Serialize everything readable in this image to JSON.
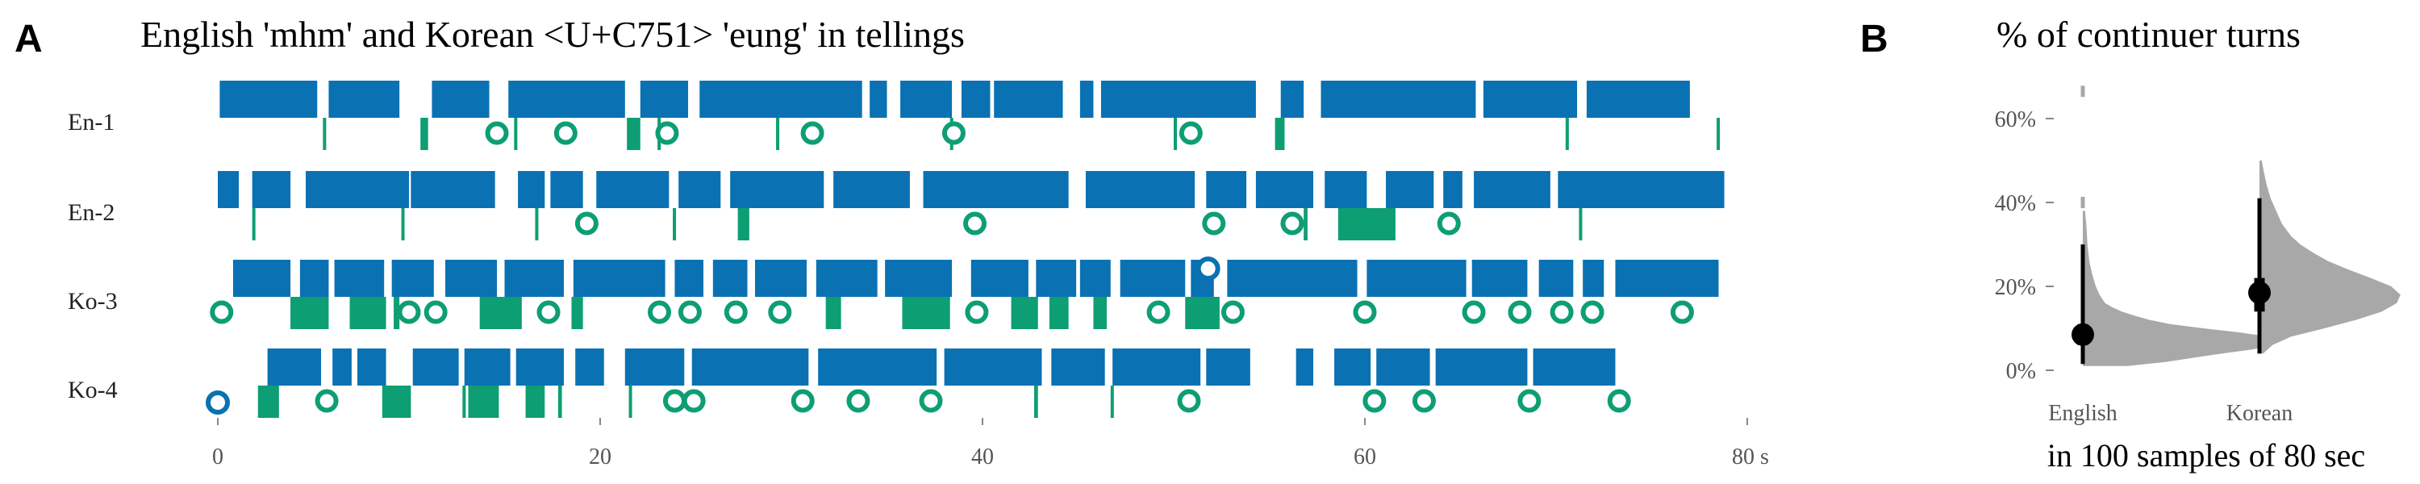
{
  "chart_data": [
    {
      "type": "timeline",
      "panel_label": "A",
      "title": "English 'mhm' and Korean <U+C751> 'eung' in tellings",
      "x_unit_label": "80 s",
      "x_ticks": [
        "0",
        "20",
        "40",
        "60"
      ],
      "x_tick_values": [
        0,
        20,
        40,
        60
      ],
      "xlim": [
        0,
        80
      ],
      "colors": {
        "teller": "#0a71b3",
        "continuer": "#0e9e73"
      },
      "rows": [
        {
          "label": "En-1",
          "teller_turns": [
            [
              0.1,
              5.2
            ],
            [
              5.8,
              9.5
            ],
            [
              11.2,
              14.2
            ],
            [
              15.2,
              21.3
            ],
            [
              22.1,
              24.6
            ],
            [
              25.2,
              33.7
            ],
            [
              34.1,
              35
            ],
            [
              35.7,
              38.4
            ],
            [
              38.9,
              40.4
            ],
            [
              40.6,
              44.2
            ],
            [
              45.1,
              45.8
            ],
            [
              46.2,
              54.3
            ],
            [
              55.6,
              56.8
            ],
            [
              57.7,
              65.8
            ],
            [
              66.2,
              71.1
            ],
            [
              71.6,
              77
            ]
          ],
          "continuer_turns": [
            [
              5.5,
              5.6
            ],
            [
              10.6,
              11
            ],
            [
              15.5,
              15.6
            ],
            [
              21.4,
              22.1
            ],
            [
              23,
              23.1
            ],
            [
              29.2,
              29.3
            ],
            [
              38.3,
              38.4
            ],
            [
              50,
              50.1
            ],
            [
              55.3,
              55.8
            ],
            [
              70.5,
              70.6
            ],
            [
              78.4,
              78.5
            ]
          ],
          "teller_tokens": [],
          "continuer_tokens": [
            14.6,
            18.2,
            23.5,
            31.1,
            38.5,
            50.9
          ]
        },
        {
          "label": "En-2",
          "teller_turns": [
            [
              0,
              1.1
            ],
            [
              1.8,
              3.8
            ],
            [
              4.6,
              10
            ],
            [
              10.1,
              14.5
            ],
            [
              15.7,
              17.1
            ],
            [
              17.4,
              19.1
            ],
            [
              19.8,
              23.6
            ],
            [
              24.1,
              26.3
            ],
            [
              26.8,
              31.7
            ],
            [
              32.2,
              36.2
            ],
            [
              36.9,
              44.5
            ],
            [
              45.4,
              51.1
            ],
            [
              51.7,
              53.8
            ],
            [
              54.3,
              57.3
            ],
            [
              57.9,
              60.1
            ],
            [
              61.1,
              63.6
            ],
            [
              64.1,
              65.1
            ],
            [
              65.7,
              69.7
            ],
            [
              70.1,
              78.8
            ]
          ],
          "continuer_tokens": [
            19.3,
            39.6,
            52.1,
            56.2,
            64.4
          ],
          "continuer_turns": [
            [
              1.8,
              1.9
            ],
            [
              9.6,
              9.7
            ],
            [
              16.6,
              16.7
            ],
            [
              23.8,
              23.9
            ],
            [
              27.2,
              27.8
            ],
            [
              56.8,
              57
            ],
            [
              58.6,
              61.6
            ],
            [
              71.2,
              71.3
            ]
          ],
          "teller_tokens": []
        },
        {
          "label": "Ko-3",
          "teller_turns": [
            [
              0.8,
              3.8
            ],
            [
              4.3,
              5.8
            ],
            [
              6.1,
              8.7
            ],
            [
              9.1,
              11.3
            ],
            [
              11.9,
              14.6
            ],
            [
              15,
              18.1
            ],
            [
              18.6,
              23.4
            ],
            [
              23.9,
              25.4
            ],
            [
              25.9,
              27.7
            ],
            [
              28.1,
              30.8
            ],
            [
              31.3,
              34.5
            ],
            [
              34.9,
              38.4
            ],
            [
              39.4,
              42.4
            ],
            [
              42.8,
              44.9
            ],
            [
              45.1,
              46.7
            ],
            [
              47.2,
              50.6
            ],
            [
              50.9,
              52.1
            ],
            [
              52.8,
              59.6
            ],
            [
              60.1,
              65.3
            ],
            [
              65.6,
              68.5
            ],
            [
              69.1,
              70.9
            ],
            [
              71.4,
              72.5
            ],
            [
              73.1,
              78.5
            ]
          ],
          "teller_tokens": [
            51.8
          ],
          "continuer_tokens": [
            0.2,
            10,
            11.4,
            17.3,
            23.1,
            24.7,
            27.1,
            29.4,
            39.7,
            49.2,
            53.1,
            60,
            65.7,
            68.1,
            70.3,
            71.9,
            76.6
          ],
          "continuer_turns": [
            [
              3.8,
              5.8
            ],
            [
              6.9,
              8.8
            ],
            [
              9.2,
              9.5
            ],
            [
              13.7,
              15.9
            ],
            [
              18.5,
              19.1
            ],
            [
              31.8,
              32.6
            ],
            [
              35.8,
              38.3
            ],
            [
              41.5,
              42.9
            ],
            [
              43.5,
              44.5
            ],
            [
              45.8,
              46.5
            ],
            [
              50.6,
              52.4
            ]
          ]
        },
        {
          "label": "Ko-4",
          "teller_tokens": [
            0
          ],
          "teller_turns": [
            [
              2.6,
              5.4
            ],
            [
              6,
              7
            ],
            [
              7.3,
              8.8
            ],
            [
              10.2,
              12.6
            ],
            [
              12.9,
              15.3
            ],
            [
              15.6,
              18.1
            ],
            [
              18.7,
              20.2
            ],
            [
              21.3,
              24.4
            ],
            [
              24.8,
              30.9
            ],
            [
              31.4,
              37.6
            ],
            [
              38,
              43.1
            ],
            [
              43.6,
              46.4
            ],
            [
              46.8,
              51.4
            ],
            [
              51.7,
              54
            ],
            [
              56.4,
              57.3
            ],
            [
              58.4,
              60.3
            ],
            [
              60.6,
              63.4
            ],
            [
              63.7,
              68.5
            ],
            [
              68.8,
              73.1
            ]
          ],
          "continuer_tokens": [
            5.7,
            23.9,
            24.9,
            30.6,
            33.5,
            37.3,
            50.8,
            60.5,
            63.1,
            68.6,
            73.3
          ],
          "continuer_turns": [
            [
              2.1,
              3.2
            ],
            [
              8.6,
              10.1
            ],
            [
              12.8,
              12.9
            ],
            [
              13.1,
              14.7
            ],
            [
              16.1,
              17.1
            ],
            [
              17.8,
              18
            ],
            [
              21.5,
              21.6
            ],
            [
              42.7,
              42.9
            ],
            [
              46.7,
              46.8
            ]
          ]
        }
      ]
    },
    {
      "type": "violin",
      "panel_label": "B",
      "title": "% of continuer turns",
      "xlabel": "in 100 samples of 80 sec",
      "categories": [
        "English",
        "Korean"
      ],
      "y_ticks": [
        "0%",
        "20%",
        "40%",
        "60%"
      ],
      "y_tick_values": [
        0,
        20,
        40,
        60
      ],
      "ylim": [
        -1,
        66
      ],
      "colors": {
        "violin": "#a8a8a8",
        "summary": "#000000"
      },
      "series": [
        {
          "name": "English",
          "median": 8.5,
          "iqr": [
            6,
            11
          ],
          "whisker": [
            1.5,
            30
          ],
          "outliers": [
            40,
            66.5
          ],
          "density": [
            [
              1,
              0.24
            ],
            [
              2,
              0.45
            ],
            [
              3,
              0.6
            ],
            [
              4,
              0.75
            ],
            [
              5,
              0.92
            ],
            [
              6,
              1.02
            ],
            [
              7,
              1.05
            ],
            [
              8,
              1.0
            ],
            [
              9,
              0.85
            ],
            [
              10,
              0.65
            ],
            [
              11,
              0.47
            ],
            [
              12,
              0.36
            ],
            [
              13,
              0.28
            ],
            [
              14,
              0.21
            ],
            [
              15,
              0.16
            ],
            [
              16,
              0.12
            ],
            [
              18,
              0.09
            ],
            [
              20,
              0.07
            ],
            [
              23,
              0.05
            ],
            [
              26,
              0.035
            ],
            [
              30,
              0.025
            ],
            [
              34,
              0.02
            ],
            [
              38,
              0.012
            ]
          ]
        },
        {
          "name": "Korean",
          "median": 18.5,
          "iqr": [
            14,
            22
          ],
          "whisker": [
            4,
            41
          ],
          "outliers": [],
          "density": [
            [
              4,
              0.02
            ],
            [
              6,
              0.07
            ],
            [
              8,
              0.17
            ],
            [
              10,
              0.35
            ],
            [
              12,
              0.52
            ],
            [
              14,
              0.66
            ],
            [
              16,
              0.74
            ],
            [
              18,
              0.76
            ],
            [
              20,
              0.71
            ],
            [
              22,
              0.6
            ],
            [
              24,
              0.48
            ],
            [
              26,
              0.37
            ],
            [
              28,
              0.29
            ],
            [
              30,
              0.22
            ],
            [
              32,
              0.17
            ],
            [
              35,
              0.12
            ],
            [
              38,
              0.09
            ],
            [
              41,
              0.06
            ],
            [
              44,
              0.04
            ],
            [
              47,
              0.025
            ],
            [
              50,
              0.012
            ]
          ]
        }
      ]
    }
  ]
}
